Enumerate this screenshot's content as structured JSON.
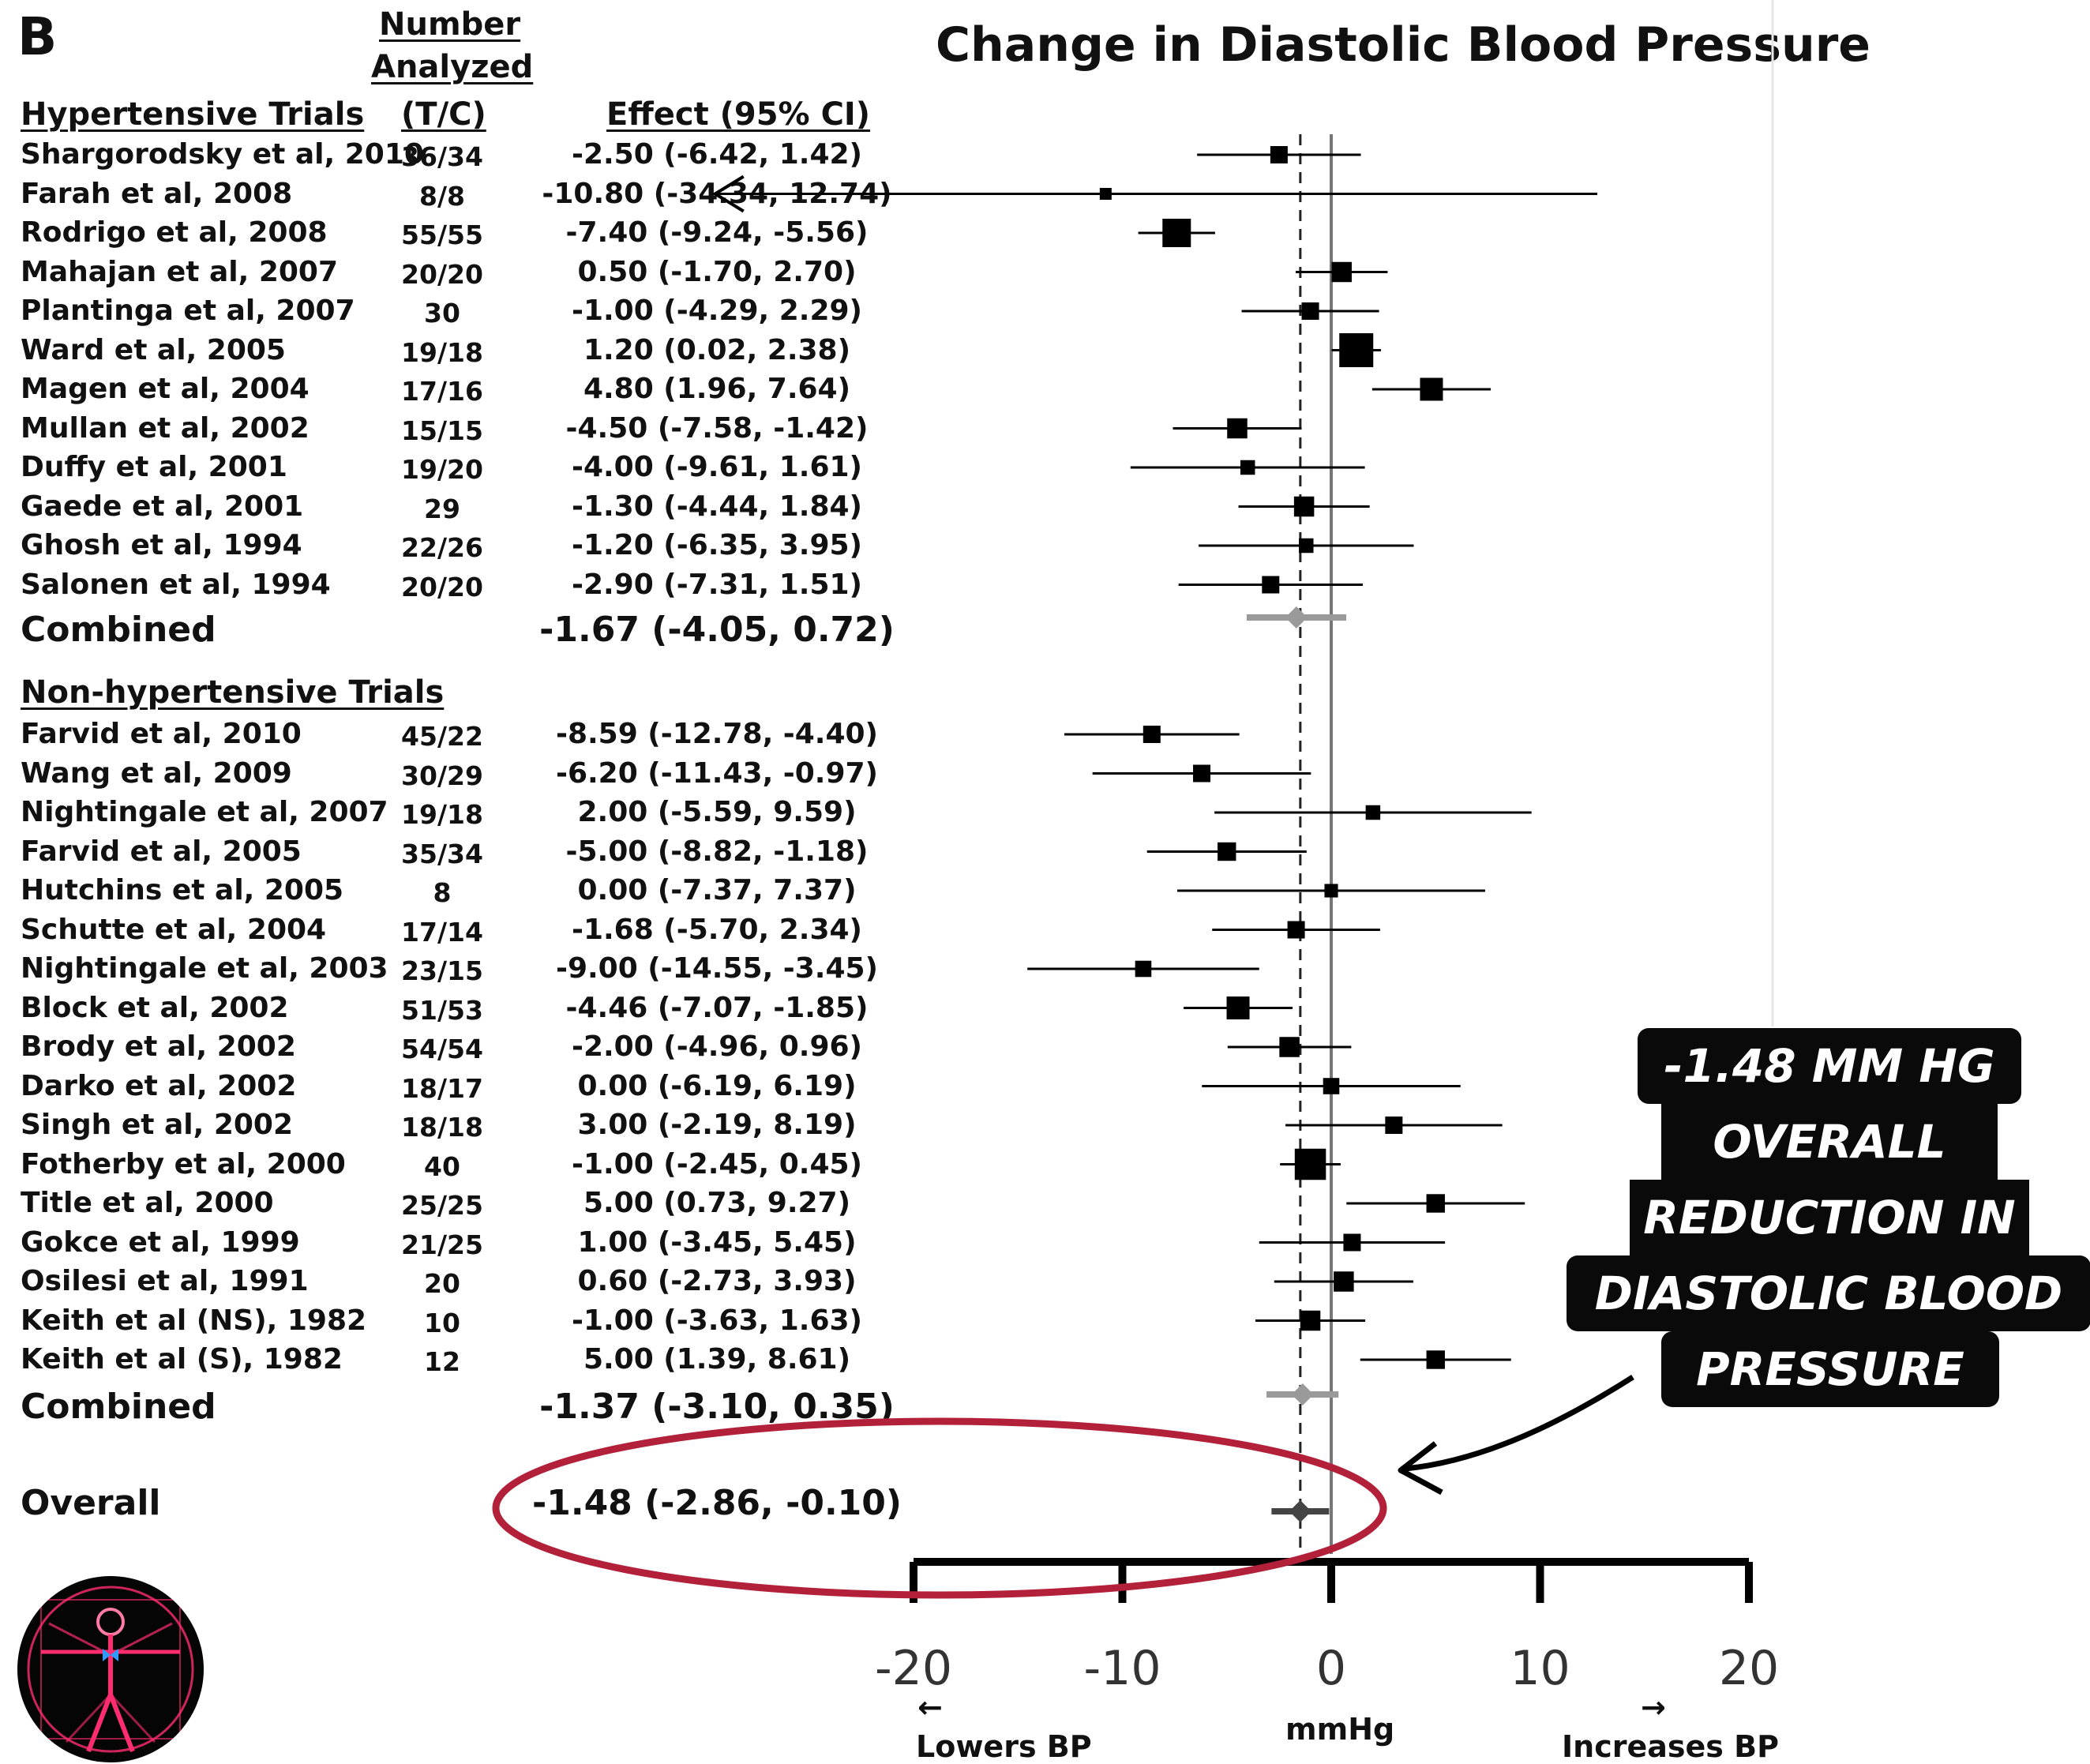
{
  "panel_letter": "B",
  "columns": {
    "number_line1": "Number",
    "number_line2": "Analyzed",
    "tc": "(T/C)",
    "effect": "Effect (95% CI)"
  },
  "groups": {
    "hypertensive_label": "Hypertensive Trials",
    "nonhypertensive_label": "Non-hypertensive Trials"
  },
  "combined_label": "Combined",
  "overall_label": "Overall",
  "combined_hyp_text": "-1.67 (-4.05, 0.72)",
  "combined_nonhyp_text": "-1.37 (-3.10, 0.35)",
  "overall_text": "-1.48 (-2.86, -0.10)",
  "hypertensive_trials": [
    {
      "study": "Shargorodsky et al, 2010",
      "n": "36/34",
      "effect_text": "-2.50 (-6.42, 1.42)"
    },
    {
      "study": "Farah et al, 2008",
      "n": "8/8",
      "effect_text": "-10.80 (-34.34, 12.74)"
    },
    {
      "study": "Rodrigo et al, 2008",
      "n": "55/55",
      "effect_text": "-7.40 (-9.24, -5.56)"
    },
    {
      "study": "Mahajan et al, 2007",
      "n": "20/20",
      "effect_text": "0.50 (-1.70, 2.70)"
    },
    {
      "study": "Plantinga et al, 2007",
      "n": "30",
      "effect_text": "-1.00 (-4.29, 2.29)"
    },
    {
      "study": "Ward et al, 2005",
      "n": "19/18",
      "effect_text": "1.20 (0.02, 2.38)"
    },
    {
      "study": "Magen et al, 2004",
      "n": "17/16",
      "effect_text": "4.80 (1.96, 7.64)"
    },
    {
      "study": "Mullan et al, 2002",
      "n": "15/15",
      "effect_text": "-4.50 (-7.58, -1.42)"
    },
    {
      "study": "Duffy et al, 2001",
      "n": "19/20",
      "effect_text": "-4.00 (-9.61, 1.61)"
    },
    {
      "study": "Gaede et al, 2001",
      "n": "29",
      "effect_text": "-1.30 (-4.44, 1.84)"
    },
    {
      "study": "Ghosh et al, 1994",
      "n": "22/26",
      "effect_text": "-1.20 (-6.35, 3.95)"
    },
    {
      "study": "Salonen et al, 1994",
      "n": "20/20",
      "effect_text": "-2.90 (-7.31, 1.51)"
    }
  ],
  "nonhypertensive_trials": [
    {
      "study": "Farvid et al, 2010",
      "n": "45/22",
      "effect_text": "-8.59 (-12.78, -4.40)"
    },
    {
      "study": "Wang et al, 2009",
      "n": "30/29",
      "effect_text": "-6.20 (-11.43, -0.97)"
    },
    {
      "study": "Nightingale et al, 2007",
      "n": "19/18",
      "effect_text": "2.00 (-5.59, 9.59)"
    },
    {
      "study": "Farvid et al, 2005",
      "n": "35/34",
      "effect_text": "-5.00 (-8.82, -1.18)"
    },
    {
      "study": "Hutchins et al, 2005",
      "n": "8",
      "effect_text": "0.00 (-7.37, 7.37)"
    },
    {
      "study": "Schutte et al, 2004",
      "n": "17/14",
      "effect_text": "-1.68 (-5.70, 2.34)"
    },
    {
      "study": "Nightingale et al, 2003",
      "n": "23/15",
      "effect_text": "-9.00 (-14.55, -3.45)"
    },
    {
      "study": "Block et al, 2002",
      "n": "51/53",
      "effect_text": "-4.46 (-7.07, -1.85)"
    },
    {
      "study": "Brody et al, 2002",
      "n": "54/54",
      "effect_text": "-2.00 (-4.96, 0.96)"
    },
    {
      "study": "Darko et al, 2002",
      "n": "18/17",
      "effect_text": "0.00 (-6.19, 6.19)"
    },
    {
      "study": "Singh et al, 2002",
      "n": "18/18",
      "effect_text": "3.00 (-2.19, 8.19)"
    },
    {
      "study": "Fotherby et al, 2000",
      "n": "40",
      "effect_text": "-1.00 (-2.45, 0.45)"
    },
    {
      "study": "Title et al, 2000",
      "n": "25/25",
      "effect_text": "5.00 (0.73, 9.27)"
    },
    {
      "study": "Gokce et al, 1999",
      "n": "21/25",
      "effect_text": "1.00 (-3.45, 5.45)"
    },
    {
      "study": "Osilesi et al, 1991",
      "n": "20",
      "effect_text": "0.60 (-2.73, 3.93)"
    },
    {
      "study": "Keith et al (NS), 1982",
      "n": "10",
      "effect_text": "-1.00 (-3.63, 1.63)"
    },
    {
      "study": "Keith et al (S), 1982",
      "n": "12",
      "effect_text": "5.00 (1.39, 8.61)"
    }
  ],
  "chart_data": {
    "type": "forest",
    "title": "Change in Diastolic Blood Pressure",
    "xlabel": "mmHg",
    "xlim": [
      -20,
      20
    ],
    "xticks": [
      -20,
      -10,
      0,
      10,
      20
    ],
    "xtick_labels": [
      "-20",
      "-10",
      "0",
      "10",
      "20"
    ],
    "left_arrow": "←",
    "right_arrow": "→",
    "left_direction_label": "Lowers BP",
    "right_direction_label": "Increases BP",
    "reference_line": 0,
    "dashed_line": -1.48,
    "hypertensive": [
      {
        "est": -2.5,
        "lo": -6.42,
        "hi": 1.42,
        "weight": 2
      },
      {
        "est": -10.8,
        "lo": -34.34,
        "hi": 12.74,
        "weight": 1
      },
      {
        "est": -7.4,
        "lo": -9.24,
        "hi": -5.56,
        "weight": 4
      },
      {
        "est": 0.5,
        "lo": -1.7,
        "hi": 2.7,
        "weight": 2.5
      },
      {
        "est": -1.0,
        "lo": -4.29,
        "hi": 2.29,
        "weight": 2
      },
      {
        "est": 1.2,
        "lo": 0.02,
        "hi": 2.38,
        "weight": 5
      },
      {
        "est": 4.8,
        "lo": 1.96,
        "hi": 7.64,
        "weight": 3
      },
      {
        "est": -4.5,
        "lo": -7.58,
        "hi": -1.42,
        "weight": 2.5
      },
      {
        "est": -4.0,
        "lo": -9.61,
        "hi": 1.61,
        "weight": 1.5
      },
      {
        "est": -1.3,
        "lo": -4.44,
        "hi": 1.84,
        "weight": 2.5
      },
      {
        "est": -1.2,
        "lo": -6.35,
        "hi": 3.95,
        "weight": 1.5
      },
      {
        "est": -2.9,
        "lo": -7.31,
        "hi": 1.51,
        "weight": 2
      }
    ],
    "hypertensive_combined": {
      "est": -1.67,
      "lo": -4.05,
      "hi": 0.72
    },
    "nonhypertensive": [
      {
        "est": -8.59,
        "lo": -12.78,
        "hi": -4.4,
        "weight": 2
      },
      {
        "est": -6.2,
        "lo": -11.43,
        "hi": -0.97,
        "weight": 2
      },
      {
        "est": 2.0,
        "lo": -5.59,
        "hi": 9.59,
        "weight": 1.5
      },
      {
        "est": -5.0,
        "lo": -8.82,
        "hi": -1.18,
        "weight": 2.2
      },
      {
        "est": 0.0,
        "lo": -7.37,
        "hi": 7.37,
        "weight": 1.3
      },
      {
        "est": -1.68,
        "lo": -5.7,
        "hi": 2.34,
        "weight": 2
      },
      {
        "est": -9.0,
        "lo": -14.55,
        "hi": -3.45,
        "weight": 1.8
      },
      {
        "est": -4.46,
        "lo": -7.07,
        "hi": -1.85,
        "weight": 3
      },
      {
        "est": -2.0,
        "lo": -4.96,
        "hi": 0.96,
        "weight": 2.5
      },
      {
        "est": 0.0,
        "lo": -6.19,
        "hi": 6.19,
        "weight": 1.8
      },
      {
        "est": 3.0,
        "lo": -2.19,
        "hi": 8.19,
        "weight": 2
      },
      {
        "est": -1.0,
        "lo": -2.45,
        "hi": 0.45,
        "weight": 4.5
      },
      {
        "est": 5.0,
        "lo": 0.73,
        "hi": 9.27,
        "weight": 2.2
      },
      {
        "est": 1.0,
        "lo": -3.45,
        "hi": 5.45,
        "weight": 2
      },
      {
        "est": 0.6,
        "lo": -2.73,
        "hi": 3.93,
        "weight": 2.5
      },
      {
        "est": -1.0,
        "lo": -3.63,
        "hi": 1.63,
        "weight": 2.5
      },
      {
        "est": 5.0,
        "lo": 1.39,
        "hi": 8.61,
        "weight": 2.2
      }
    ],
    "nonhypertensive_combined": {
      "est": -1.37,
      "lo": -3.1,
      "hi": 0.35
    },
    "overall": {
      "est": -1.48,
      "lo": -2.86,
      "hi": -0.1
    }
  },
  "callout": {
    "lines": [
      "-1.48 MM HG",
      "OVERALL",
      "REDUCTION IN",
      "DIASTOLIC  BLOOD",
      "PRESSURE"
    ]
  },
  "colors": {
    "highlight_ellipse": "#b3203a",
    "marker": "#000000",
    "combined_diamond": "#9a9a9a",
    "overall_diamond": "#444444",
    "callout_bg": "#0a0a0a",
    "logo_accent": "#ff2d6f",
    "logo_blue": "#2f9bff"
  },
  "logo": {
    "icon": "vitruvian-man-icon"
  }
}
